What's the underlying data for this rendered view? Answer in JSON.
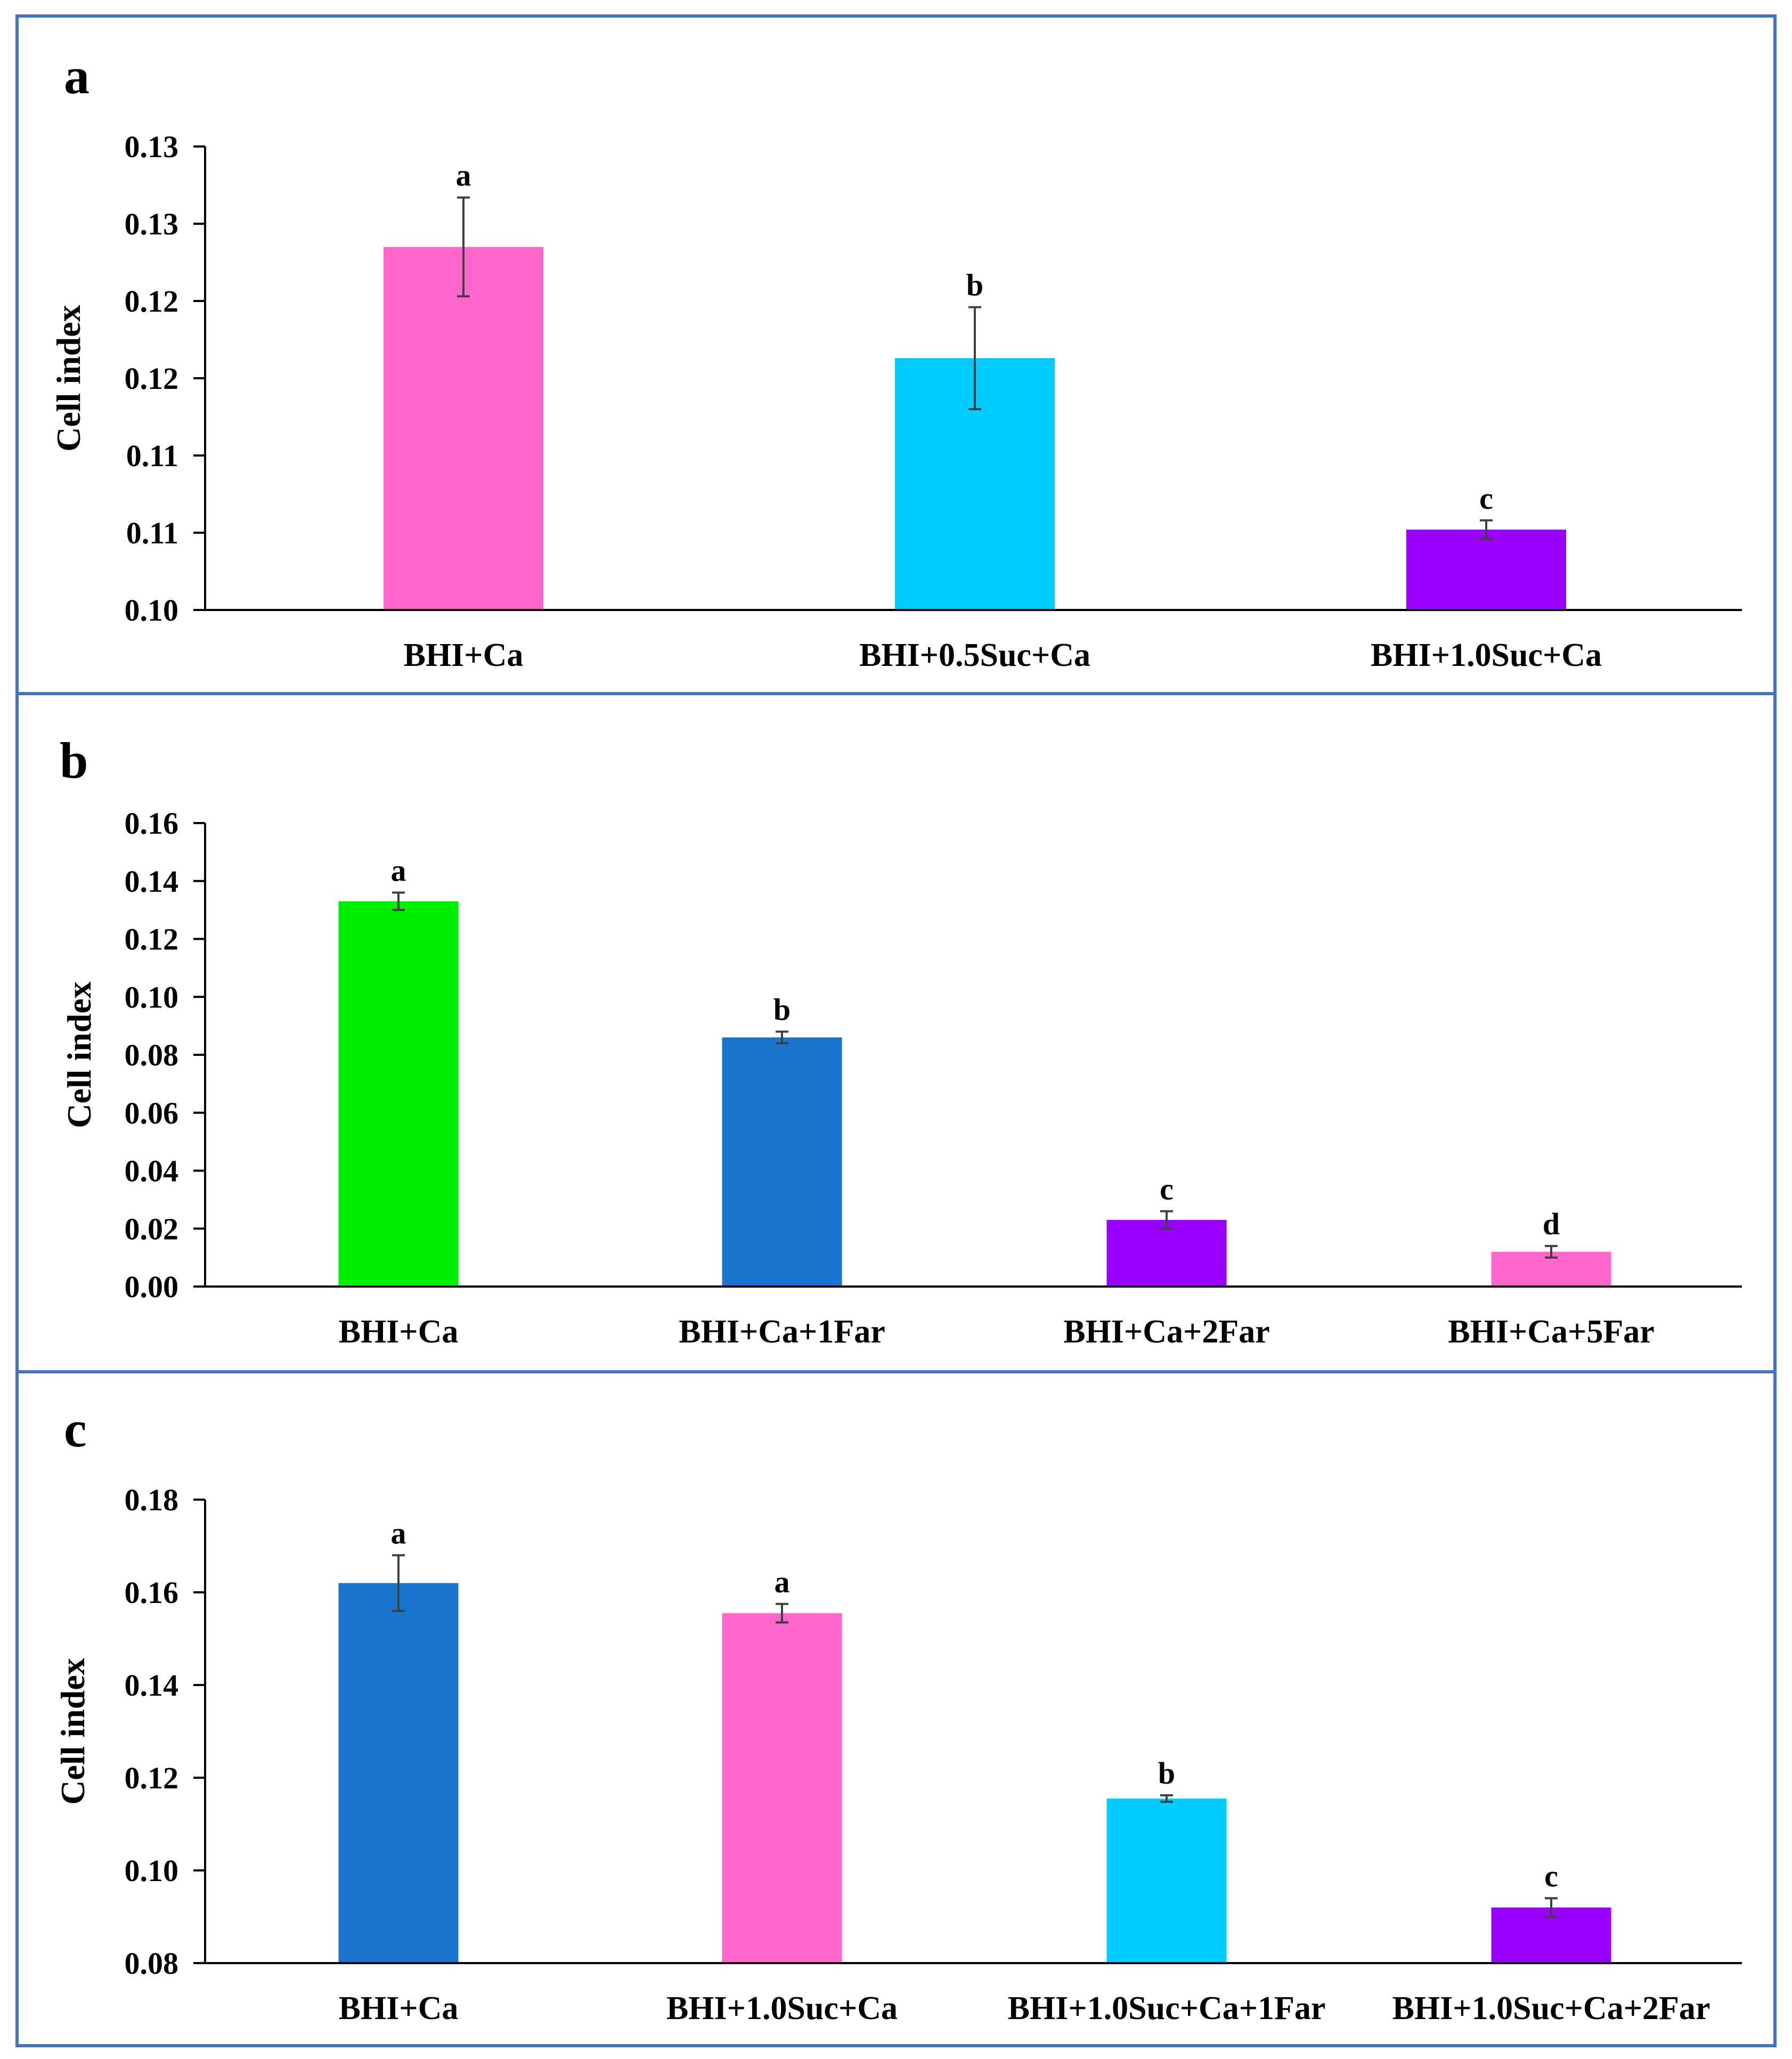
{
  "figure": {
    "border_color": "#4472C4"
  },
  "chart_data": [
    {
      "panel": "a",
      "type": "bar",
      "ylabel": "Cell index",
      "ylim": [
        0.1,
        0.13
      ],
      "ytick_labels": [
        "0.10",
        "0.11",
        "0.11",
        "0.12",
        "0.12",
        "0.13",
        "0.13"
      ],
      "categories": [
        "BHI+Ca",
        "BHI+0.5Suc+Ca",
        "BHI+1.0Suc+Ca"
      ],
      "values": [
        0.1235,
        0.1163,
        0.1052
      ],
      "errors": [
        0.0032,
        0.0033,
        0.0006
      ],
      "significance": [
        "a",
        "b",
        "c"
      ],
      "colors": [
        "#FF66CC",
        "#00CCFF",
        "#9900FF"
      ]
    },
    {
      "panel": "b",
      "type": "bar",
      "ylabel": "Cell index",
      "ylim": [
        0.0,
        0.16
      ],
      "ytick_labels": [
        "0.00",
        "0.02",
        "0.04",
        "0.06",
        "0.08",
        "0.10",
        "0.12",
        "0.14",
        "0.16"
      ],
      "categories": [
        "BHI+Ca",
        "BHI+Ca+1Far",
        "BHI+Ca+2Far",
        "BHI+Ca+5Far"
      ],
      "values": [
        0.133,
        0.086,
        0.023,
        0.012
      ],
      "errors": [
        0.003,
        0.002,
        0.003,
        0.002
      ],
      "significance": [
        "a",
        "b",
        "c",
        "d"
      ],
      "colors": [
        "#00EE00",
        "#1874CD",
        "#9900FF",
        "#FF66CC"
      ]
    },
    {
      "panel": "c",
      "type": "bar",
      "ylabel": "Cell index",
      "ylim": [
        0.08,
        0.18
      ],
      "ytick_labels": [
        "0.08",
        "0.10",
        "0.12",
        "0.14",
        "0.16",
        "0.18"
      ],
      "categories": [
        "BHI+Ca",
        "BHI+1.0Suc+Ca",
        "BHI+1.0Suc+Ca+1Far",
        "BHI+1.0Suc+Ca+2Far"
      ],
      "values": [
        0.162,
        0.1555,
        0.1155,
        0.092
      ],
      "errors": [
        0.006,
        0.002,
        0.0007,
        0.002
      ],
      "significance": [
        "a",
        "a",
        "b",
        "c"
      ],
      "colors": [
        "#1874CD",
        "#FF66CC",
        "#00CCFF",
        "#9900FF"
      ]
    }
  ]
}
